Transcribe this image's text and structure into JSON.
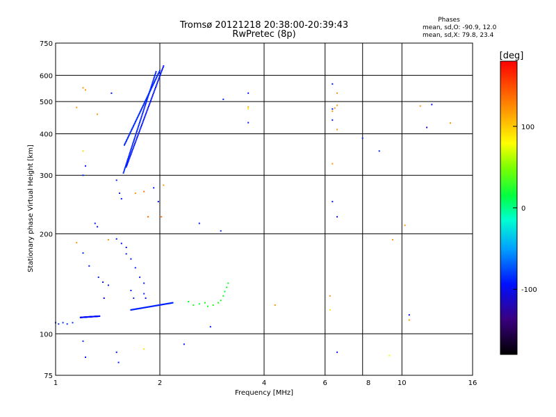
{
  "chart_data": {
    "type": "scatter",
    "title": "Tromsø 20121218 20:38:00-20:39:43",
    "subtitle": "RwPretec (8p)",
    "xlabel": "Frequency [MHz]",
    "ylabel": "Stationary phase Virtual Height [km]",
    "x_scale": "log",
    "y_scale": "log",
    "xlim": [
      1,
      16
    ],
    "ylim": [
      75,
      750
    ],
    "x_ticks": [
      1,
      2,
      4,
      6,
      8,
      10,
      16
    ],
    "x_tick_labels": [
      "1",
      "2",
      "4",
      "6",
      "8",
      "10",
      "16"
    ],
    "y_ticks": [
      75,
      100,
      200,
      300,
      400,
      500,
      600,
      750
    ],
    "y_tick_labels": [
      "75",
      "100",
      "200",
      "300",
      "400",
      "500",
      "600",
      "750"
    ],
    "x_gridlines": [
      2,
      4,
      6,
      7.7,
      10
    ],
    "y_gridlines": [
      100,
      200,
      300,
      400,
      500,
      600
    ],
    "grid": true,
    "stats": {
      "heading": "Phases",
      "line1": "mean, sd,O: -90.9, 12.0",
      "line2": "mean, sd,X:  79.8, 23.4"
    },
    "colorbar": {
      "label": "[deg]",
      "ticks": [
        100,
        0,
        -100
      ],
      "tick_labels": [
        "100",
        "0",
        "-100"
      ],
      "range": [
        -180,
        180
      ],
      "placement": "right"
    },
    "series": [
      {
        "name": "",
        "color_by": "phase_deg",
        "points": [
          [
            1.0,
            108,
            -80
          ],
          [
            1.02,
            107,
            -80
          ],
          [
            1.05,
            108,
            -80
          ],
          [
            1.08,
            107,
            -80
          ],
          [
            1.12,
            108,
            -80
          ],
          [
            1.2,
            95,
            -100
          ],
          [
            1.22,
            85,
            -110
          ],
          [
            1.2,
            300,
            -100
          ],
          [
            1.22,
            320,
            -110
          ],
          [
            1.2,
            175,
            -100
          ],
          [
            1.25,
            160,
            -110
          ],
          [
            1.3,
            215,
            -110
          ],
          [
            1.32,
            210,
            -110
          ],
          [
            1.33,
            148,
            -110
          ],
          [
            1.37,
            143,
            -110
          ],
          [
            1.42,
            140,
            -110
          ],
          [
            1.38,
            128,
            -120
          ],
          [
            1.5,
            290,
            -100
          ],
          [
            1.53,
            265,
            -100
          ],
          [
            1.55,
            255,
            -100
          ],
          [
            1.5,
            193,
            -90
          ],
          [
            1.55,
            187,
            -90
          ],
          [
            1.6,
            182,
            -90
          ],
          [
            1.6,
            174,
            -100
          ],
          [
            1.65,
            168,
            -90
          ],
          [
            1.7,
            158,
            -100
          ],
          [
            1.75,
            148,
            -100
          ],
          [
            1.8,
            142,
            -110
          ],
          [
            1.65,
            135,
            -100
          ],
          [
            1.68,
            128,
            -100
          ],
          [
            1.8,
            132,
            -100
          ],
          [
            1.82,
            128,
            -110
          ],
          [
            1.5,
            88,
            -110
          ],
          [
            1.52,
            82,
            -110
          ],
          [
            1.92,
            275,
            -110
          ],
          [
            1.98,
            250,
            -90
          ],
          [
            2.35,
            93,
            -110
          ],
          [
            2.6,
            215,
            -110
          ],
          [
            2.8,
            105,
            -110
          ],
          [
            3.0,
            204,
            -100
          ],
          [
            3.6,
            530,
            -110
          ],
          [
            3.6,
            432,
            -110
          ],
          [
            6.3,
            565,
            -110
          ],
          [
            6.3,
            475,
            -110
          ],
          [
            6.3,
            440,
            -110
          ],
          [
            6.3,
            250,
            -110
          ],
          [
            6.5,
            225,
            -110
          ],
          [
            6.5,
            88,
            -110
          ],
          [
            7.7,
            388,
            -100
          ],
          [
            8.6,
            355,
            -100
          ],
          [
            10.5,
            114,
            -130
          ],
          [
            11.8,
            418,
            -130
          ],
          [
            12.2,
            490,
            -130
          ],
          [
            1.45,
            530,
            -110
          ],
          [
            3.05,
            508,
            -100
          ],
          [
            1.15,
            480,
            140
          ],
          [
            1.2,
            550,
            140
          ],
          [
            1.22,
            542,
            140
          ],
          [
            1.32,
            458,
            140
          ],
          [
            1.2,
            355,
            120
          ],
          [
            1.42,
            192,
            140
          ],
          [
            1.15,
            188,
            140
          ],
          [
            1.7,
            265,
            140
          ],
          [
            1.8,
            268,
            150
          ],
          [
            1.85,
            225,
            150
          ],
          [
            2.02,
            225,
            150
          ],
          [
            2.05,
            280,
            140
          ],
          [
            1.8,
            90,
            120
          ],
          [
            3.6,
            482,
            130
          ],
          [
            3.6,
            476,
            120
          ],
          [
            4.3,
            122,
            140
          ],
          [
            6.3,
            325,
            140
          ],
          [
            6.3,
            468,
            140
          ],
          [
            6.4,
            478,
            140
          ],
          [
            6.5,
            487,
            140
          ],
          [
            6.5,
            530,
            140
          ],
          [
            6.5,
            412,
            140
          ],
          [
            6.2,
            130,
            140
          ],
          [
            6.2,
            118,
            120
          ],
          [
            9.2,
            86,
            110
          ],
          [
            9.4,
            192,
            140
          ],
          [
            10.2,
            212,
            140
          ],
          [
            10.5,
            110,
            140
          ],
          [
            11.3,
            485,
            140
          ],
          [
            13.8,
            431,
            140
          ],
          [
            2.42,
            125,
            40
          ],
          [
            2.5,
            122,
            50
          ],
          [
            2.6,
            123,
            30
          ],
          [
            2.7,
            124,
            40
          ],
          [
            2.75,
            121,
            40
          ],
          [
            2.85,
            122,
            45
          ],
          [
            2.95,
            124,
            45
          ],
          [
            3.0,
            126,
            40
          ],
          [
            3.05,
            130,
            35
          ],
          [
            3.08,
            134,
            35
          ],
          [
            3.12,
            138,
            35
          ],
          [
            3.15,
            142,
            30
          ]
        ],
        "ribbons": [
          {
            "f_start": 1.65,
            "f_end": 2.18,
            "h_start": 118,
            "h_end": 124,
            "phase_deg": -100
          },
          {
            "f_start": 1.18,
            "f_end": 1.34,
            "h_start": 112,
            "h_end": 113,
            "phase_deg": -90
          },
          {
            "f_start": 1.57,
            "f_end": 1.95,
            "h_start": 305,
            "h_end": 615,
            "phase_deg": -100
          },
          {
            "f_start": 1.6,
            "f_end": 2.05,
            "h_start": 318,
            "h_end": 640,
            "phase_deg": -110
          },
          {
            "f_start": 1.58,
            "f_end": 2.0,
            "h_start": 370,
            "h_end": 620,
            "phase_deg": -95
          }
        ]
      }
    ]
  }
}
